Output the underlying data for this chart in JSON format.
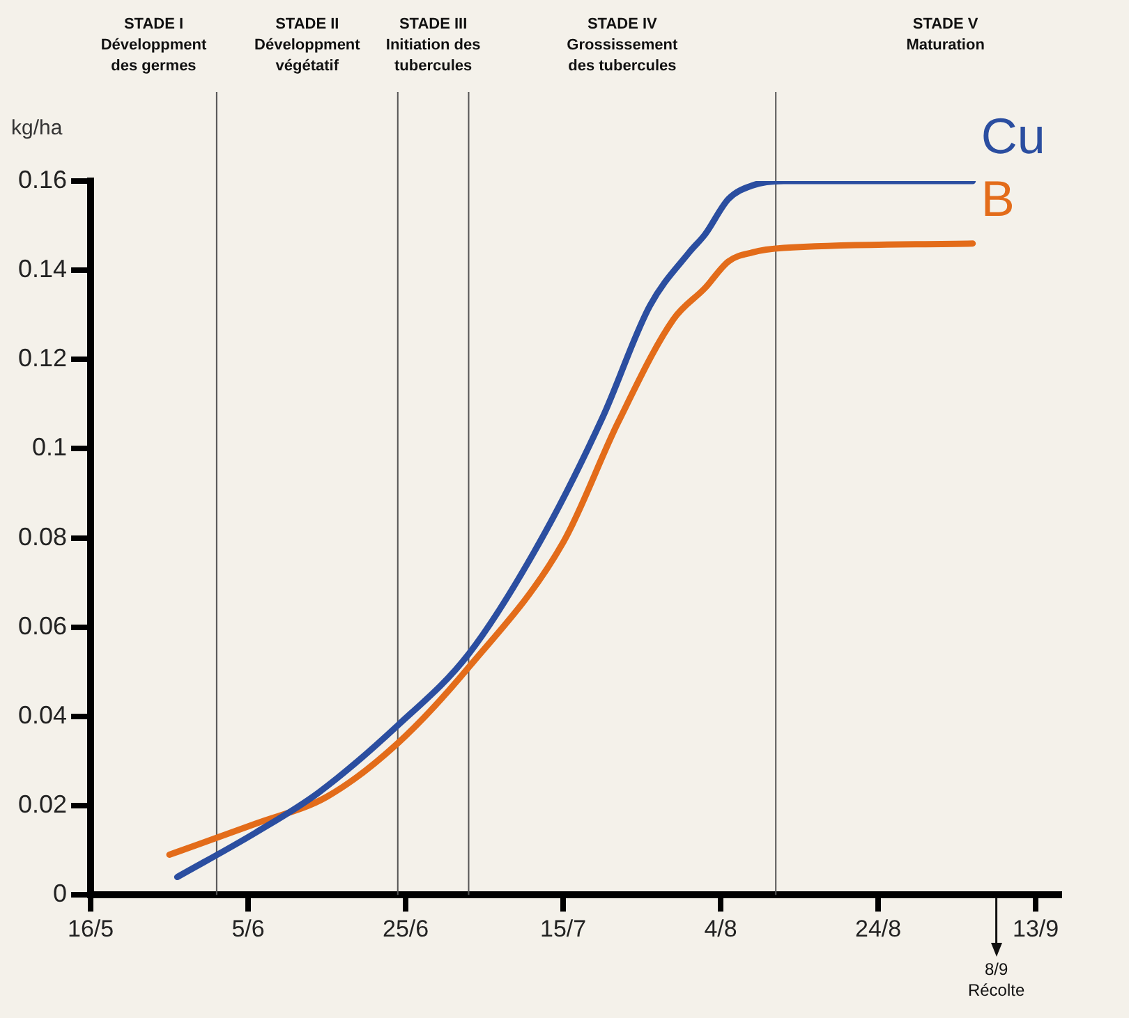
{
  "chart_data": {
    "type": "line",
    "ylabel": "kg/ha",
    "xlim": [
      "--05-16",
      "--09-16"
    ],
    "xticks": [
      {
        "value": "--05-16",
        "label": "16/5"
      },
      {
        "value": "--06-05",
        "label": "5/6"
      },
      {
        "value": "--06-25",
        "label": "25/6"
      },
      {
        "value": "--07-15",
        "label": "15/7"
      },
      {
        "value": "--08-04",
        "label": "4/8"
      },
      {
        "value": "--08-24",
        "label": "24/8"
      },
      {
        "value": "--09-13",
        "label": "13/9"
      }
    ],
    "ylim": [
      0,
      0.16
    ],
    "yticks": [
      0,
      0.02,
      0.04,
      0.06,
      0.08,
      0.1,
      0.12,
      0.14,
      0.16
    ],
    "grid": false,
    "legend": false,
    "marker": "none",
    "line_style": "solid",
    "series": [
      {
        "name": "Cu",
        "color": "#2b4ea0",
        "x": [
          "--05-27",
          "--06-06",
          "--06-14",
          "--06-24",
          "--07-03",
          "--07-12",
          "--07-20",
          "--07-26",
          "--07-31",
          "--08-02",
          "--08-05",
          "--08-08",
          "--08-12",
          "--09-05"
        ],
        "values": [
          0.004,
          0.014,
          0.023,
          0.038,
          0.054,
          0.079,
          0.107,
          0.132,
          0.144,
          0.148,
          0.156,
          0.159,
          0.16,
          0.16
        ]
      },
      {
        "name": "B",
        "color": "#e36c1a",
        "x": [
          "--05-26",
          "--06-06",
          "--06-15",
          "--06-24",
          "--07-03",
          "--07-15",
          "--07-22",
          "--07-29",
          "--08-02",
          "--08-05",
          "--08-08",
          "--08-12",
          "--09-05"
        ],
        "values": [
          0.009,
          0.016,
          0.022,
          0.034,
          0.051,
          0.079,
          0.106,
          0.129,
          0.136,
          0.142,
          0.144,
          0.145,
          0.146
        ]
      }
    ],
    "ref_lines": [
      {
        "axis": "x",
        "value": "--06-01"
      },
      {
        "axis": "x",
        "value": "--06-24"
      },
      {
        "axis": "x",
        "value": "--07-03"
      },
      {
        "axis": "x",
        "value": "--08-11"
      },
      {
        "axis": "x",
        "value": "--09-08",
        "label": "8/9\nRécolte"
      }
    ],
    "annotations": [
      "STADE I\nDéveloppment\ndes germes",
      "STADE II\nDéveloppment\nvégétatif",
      "STADE III\nInitiation des\ntubercules",
      "STADE IV\nGrossissement\ndes tubercules",
      "STADE V\nMaturation"
    ]
  }
}
